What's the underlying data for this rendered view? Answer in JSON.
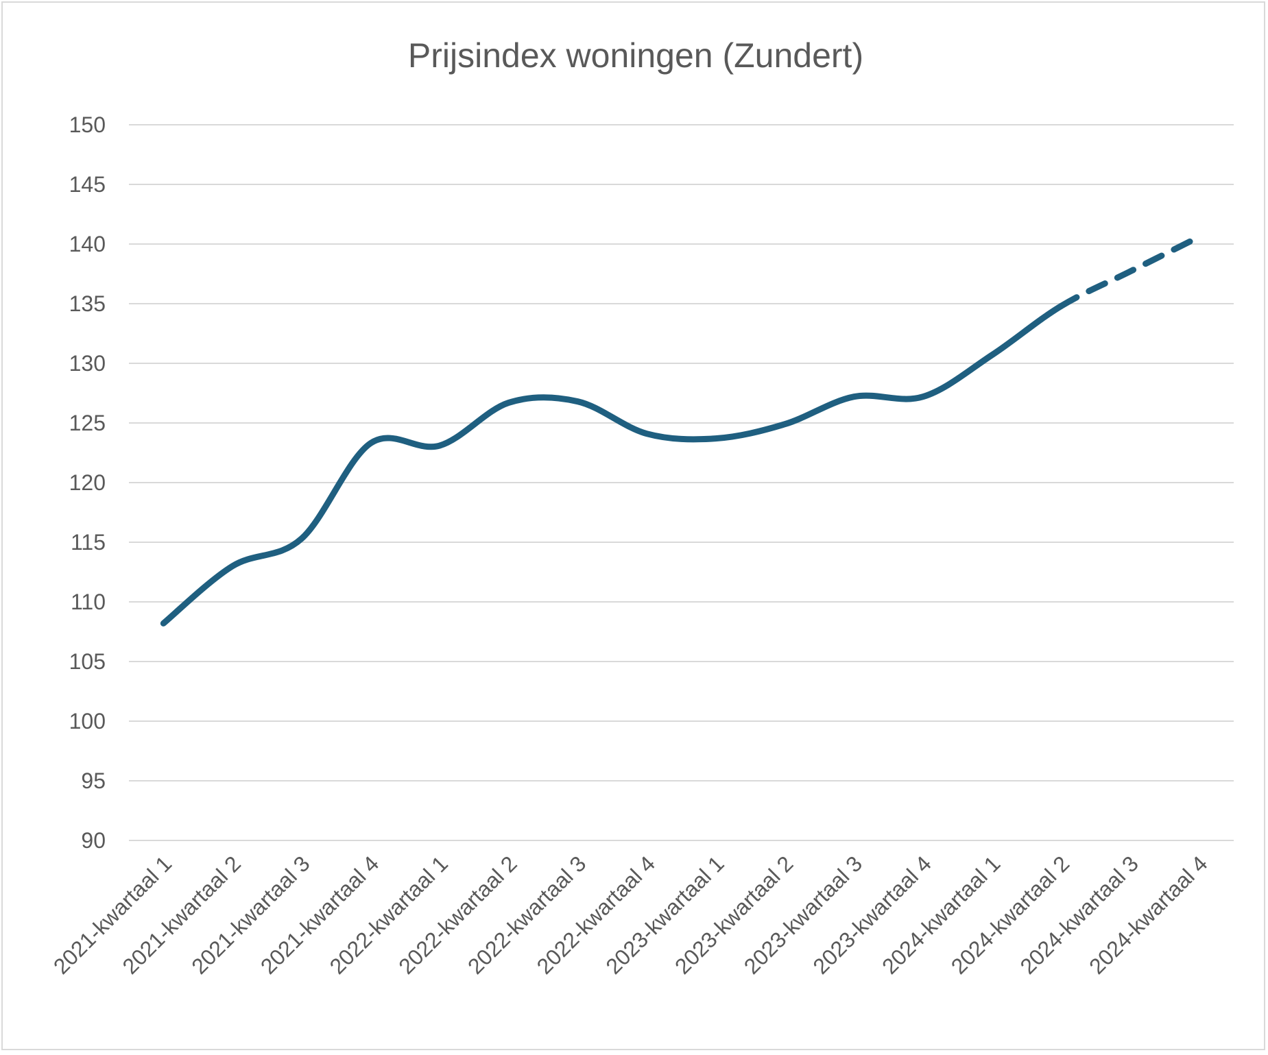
{
  "chart_data": {
    "type": "line",
    "title": "Prijsindex woningen (Zundert)",
    "xlabel": "",
    "ylabel": "",
    "ylim": [
      90,
      150
    ],
    "ytick_step": 5,
    "yticks": [
      "90",
      "95",
      "100",
      "105",
      "110",
      "115",
      "120",
      "125",
      "130",
      "135",
      "140",
      "145",
      "150"
    ],
    "grid": true,
    "legend": "none",
    "categories": [
      "2021-kwartaal 1",
      "2021-kwartaal 2",
      "2021-kwartaal 3",
      "2021-kwartaal 4",
      "2022-kwartaal 1",
      "2022-kwartaal 2",
      "2022-kwartaal 3",
      "2022-kwartaal 4",
      "2023-kwartaal 1",
      "2023-kwartaal 2",
      "2023-kwartaal 3",
      "2023-kwartaal 4",
      "2024-kwartaal 1",
      "2024-kwartaal 2",
      "2024-kwartaal 3",
      "2024-kwartaal 4"
    ],
    "series": [
      {
        "values": [
          108.2,
          113.0,
          115.3,
          123.3,
          123.1,
          126.7,
          126.8,
          124.1,
          123.7,
          124.9,
          127.2,
          127.2,
          130.7,
          134.8,
          137.7,
          140.6
        ],
        "color": "#1f5f80",
        "smooth": true,
        "dashed_from_index": 13
      }
    ]
  }
}
